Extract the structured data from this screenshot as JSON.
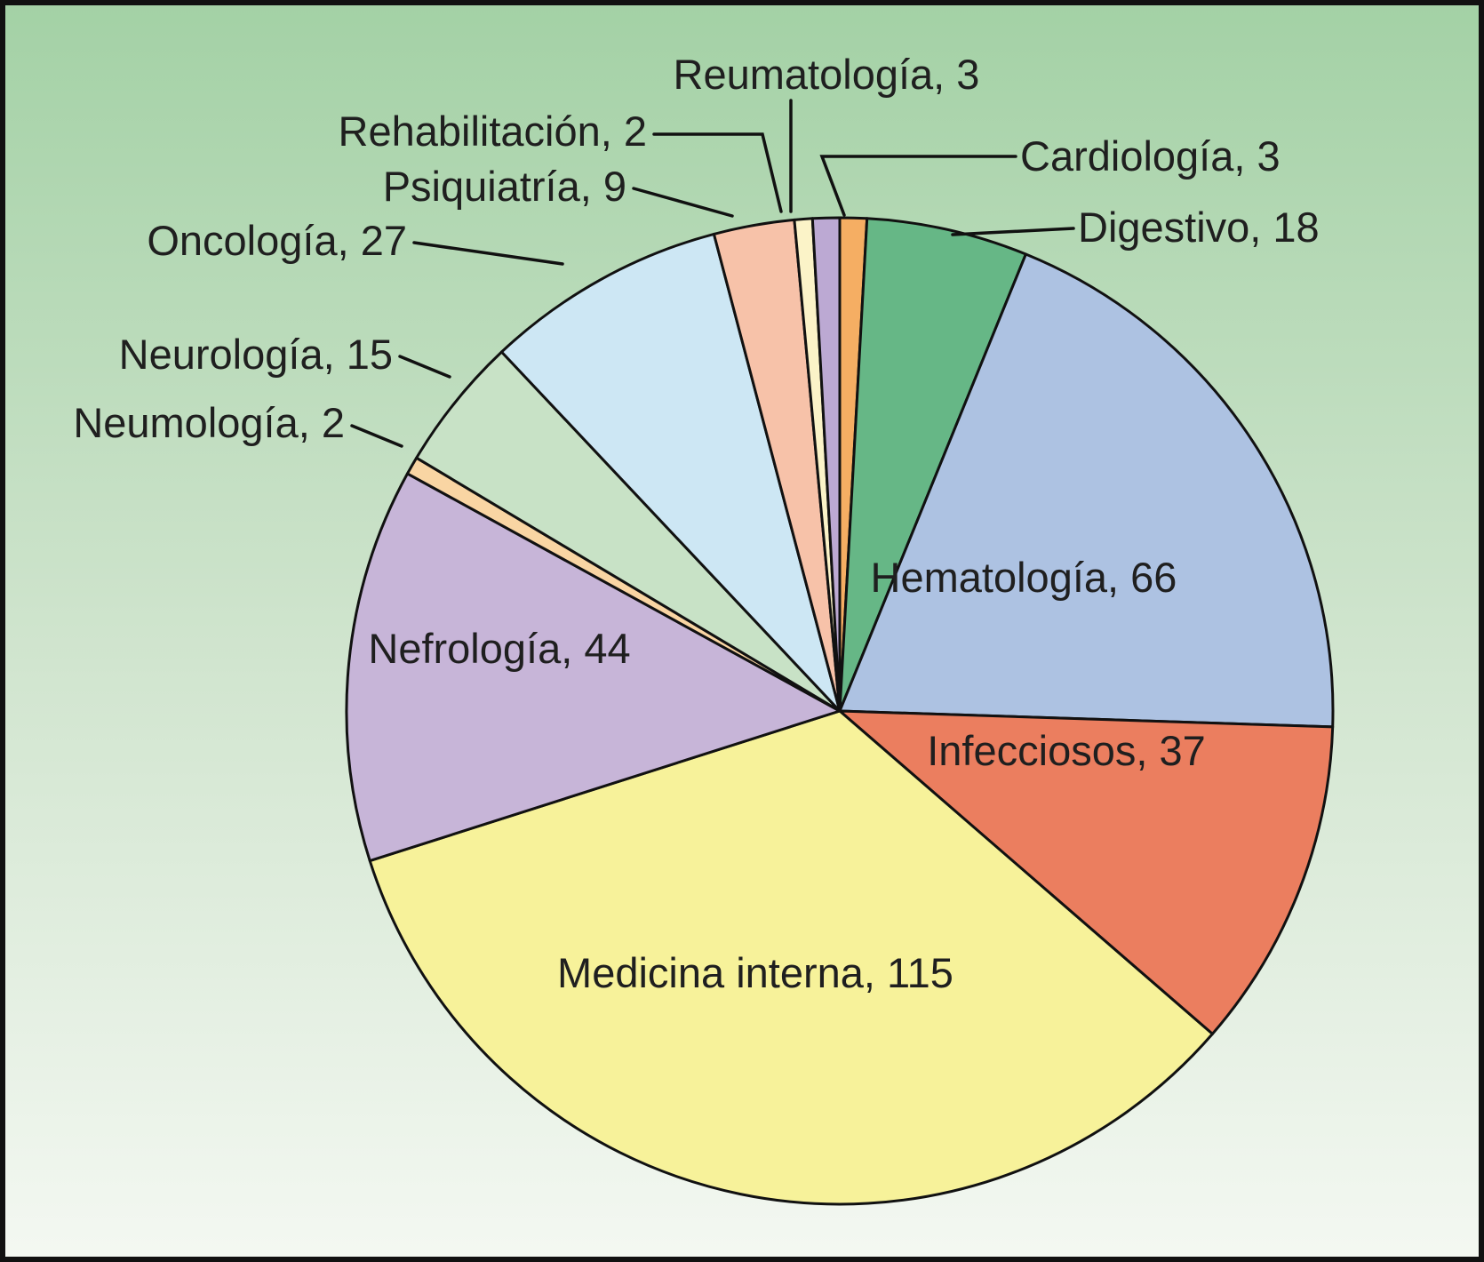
{
  "figure": {
    "background_top_color": "#a3d1a5",
    "background_mid_color": "#cfe4cd",
    "background_bottom_color": "#f4f8f2",
    "border_color": "#111111"
  },
  "chart_data": {
    "type": "pie",
    "title": "",
    "total": 341,
    "start_angle_deg": 0,
    "direction": "clockwise",
    "label_format": "{category}, {value}",
    "categories": [
      "Cardiología",
      "Digestivo",
      "Hematología",
      "Infecciosos",
      "Medicina interna",
      "Nefrología",
      "Neumología",
      "Neurología",
      "Oncología",
      "Psiquiatría",
      "Rehabilitación",
      "Reumatología"
    ],
    "values": [
      3,
      18,
      66,
      37,
      115,
      44,
      2,
      15,
      27,
      9,
      2,
      3
    ],
    "colors": [
      "#F5AE63",
      "#66B786",
      "#ADC2E2",
      "#EB7E5F",
      "#F7F29A",
      "#C7B5D8",
      "#F9D5A3",
      "#C8E2C6",
      "#CDE7F4",
      "#F7C2A9",
      "#FBF3C8",
      "#BCA9D3"
    ],
    "displayed_labels": [
      "Cardiología, 3",
      "Digestivo, 18",
      "Hematología, 66",
      "Infecciosos, 37",
      "Medicina interna, 115",
      "Nefrología, 44",
      "Neumología, 2",
      "Neurología, 15",
      "Oncología, 27",
      "Psiquiatría, 9",
      "Rehabilitación, 2",
      "Reumatología, 3"
    ]
  }
}
